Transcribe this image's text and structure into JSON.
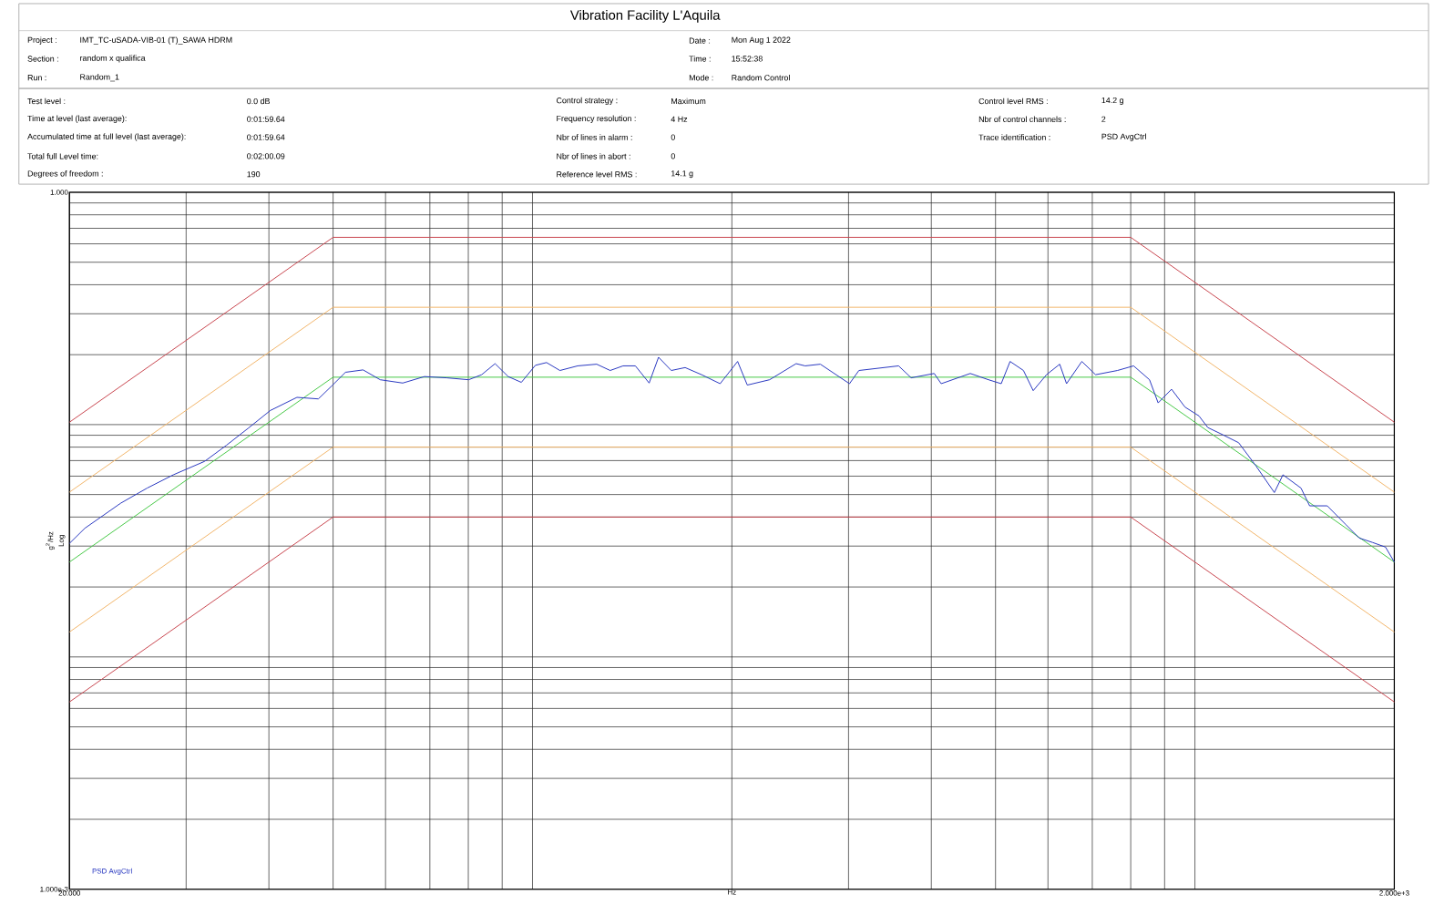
{
  "chart_data": {
    "type": "line",
    "title": "Vibration Facility L'Aquila",
    "xlabel": "Hz",
    "ylabel": "g$^{2}$/Hz",
    "annotations": [
      "Project :",
      "IMT_TC-uSADA-VIB-01 (T)_SAWA HDRM",
      "Section :",
      "random x qualifica",
      "Run :",
      "Random_1",
      "Date :",
      "Mon Aug  1 2022",
      "Time :",
      "15:52:38",
      "Mode :",
      "Random Control",
      "Test level :",
      "0.0 dB",
      "Time at level (last average):",
      "0:01:59.64",
      "Accumulated time at full level (last average):",
      "0:01:59.64",
      "Total full Level time:",
      "0:02:00.09",
      "Degrees of freedom :",
      "190",
      "Control strategy :",
      "Maximum",
      "Frequency resolution :",
      "4   Hz",
      "Nbr of lines in alarm :",
      "0",
      "Nbr of lines in abort :",
      "0",
      "Reference level RMS :",
      "14.1   g",
      "Control level RMS :",
      "14.2   g",
      "Nbr of control channels :",
      "2",
      "Trace identification :",
      "PSD AvgCtrl",
      "Log"
    ],
    "log": "xy",
    "grid": true,
    "legend": "bottom left",
    "xlim": [
      20,
      2000
    ],
    "ylim": [
      0.001,
      1
    ],
    "xticks": [
      {
        "value": 20,
        "label": "20.000"
      },
      {
        "value": 2000,
        "label": "2.000e+3"
      }
    ],
    "yticks": [
      {
        "value": 0.001,
        "label": "1.000e-3"
      },
      {
        "value": 1,
        "label": "1.000"
      }
    ],
    "series": [
      {
        "color": "#c8464f",
        "x": [
          20,
          50,
          800,
          2000
        ],
        "values": [
          0.1024,
          0.64,
          0.64,
          0.1024
        ]
      },
      {
        "color": "#f2b56a",
        "x": [
          20,
          50,
          800,
          2000
        ],
        "values": [
          0.0512,
          0.32,
          0.32,
          0.0512
        ]
      },
      {
        "color": "#46c846",
        "x": [
          20,
          50,
          800,
          2000
        ],
        "values": [
          0.0256,
          0.16,
          0.16,
          0.0256
        ]
      },
      {
        "color": "#f2b56a",
        "x": [
          20,
          50,
          800,
          2000
        ],
        "values": [
          0.0128,
          0.08,
          0.08,
          0.0128
        ]
      },
      {
        "color": "#c8464f",
        "x": [
          20,
          50,
          800,
          2000
        ],
        "values": [
          0.0064,
          0.04,
          0.04,
          0.0064
        ]
      },
      {
        "name": "PSD AvgCtrl",
        "color": "#2838c0",
        "x": [
          20,
          21.1,
          23.9,
          26.2,
          28.7,
          32.0,
          34.5,
          37.2,
          40.2,
          44.1,
          47.5,
          49.8,
          52.2,
          55.5,
          58.9,
          63.7,
          68.7,
          74.2,
          80.1,
          83.8,
          87.8,
          91.9,
          96.2,
          101,
          105,
          110,
          117,
          125,
          131,
          137,
          143,
          150,
          155,
          162,
          170,
          180,
          192,
          204,
          211,
          228,
          250,
          258,
          272,
          301,
          311,
          357,
          373,
          404,
          414,
          458,
          488,
          510,
          526,
          551,
          570,
          597,
          625,
          640,
          675,
          708,
          764,
          808,
          854,
          880,
          922,
          966,
          1014,
          1046,
          1094,
          1164,
          1236,
          1318,
          1358,
          1446,
          1490,
          1584,
          1690,
          1770,
          1854,
          1940,
          2000
        ],
        "values": [
          0.0308,
          0.0358,
          0.0459,
          0.0533,
          0.0608,
          0.0695,
          0.0814,
          0.0963,
          0.115,
          0.131,
          0.129,
          0.147,
          0.168,
          0.172,
          0.156,
          0.151,
          0.161,
          0.159,
          0.156,
          0.164,
          0.183,
          0.161,
          0.152,
          0.18,
          0.185,
          0.171,
          0.179,
          0.182,
          0.171,
          0.179,
          0.179,
          0.151,
          0.195,
          0.171,
          0.176,
          0.164,
          0.15,
          0.187,
          0.148,
          0.156,
          0.183,
          0.179,
          0.182,
          0.15,
          0.171,
          0.179,
          0.159,
          0.166,
          0.15,
          0.166,
          0.156,
          0.15,
          0.187,
          0.171,
          0.14,
          0.164,
          0.182,
          0.15,
          0.187,
          0.164,
          0.171,
          0.179,
          0.156,
          0.124,
          0.142,
          0.119,
          0.109,
          0.0971,
          0.0913,
          0.0836,
          0.0665,
          0.051,
          0.0608,
          0.0533,
          0.0447,
          0.0447,
          0.0371,
          0.0325,
          0.0311,
          0.0297,
          0.0256
        ]
      }
    ]
  }
}
